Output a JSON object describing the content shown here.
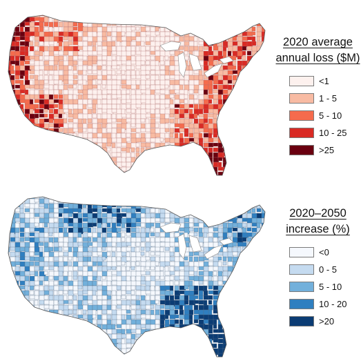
{
  "figure": {
    "top": {
      "legend_title_line1": "2020 average",
      "legend_title_line2": "annual loss ($M)",
      "border_color": "#b07070",
      "base_color": "#fdf3ef",
      "classes": [
        {
          "label": "<1",
          "color": "#fdf1ee"
        },
        {
          "label": "1 - 5",
          "color": "#f8bba3"
        },
        {
          "label": "5 - 10",
          "color": "#f56b4d"
        },
        {
          "label": "10 - 25",
          "color": "#d92a24"
        },
        {
          "label": ">25",
          "color": "#6a0010"
        }
      ]
    },
    "bottom": {
      "legend_title_line1": "2020–2050",
      "legend_title_line2": "increase (%)",
      "border_color": "#5a6f86",
      "base_color": "#f5f8fd",
      "classes": [
        {
          "label": "<0",
          "color": "#f5f8fd"
        },
        {
          "label": "0 - 5",
          "color": "#c5dbf0"
        },
        {
          "label": "5 - 10",
          "color": "#72b0db"
        },
        {
          "label": "10 - 20",
          "color": "#2f7fc0"
        },
        {
          "label": ">20",
          "color": "#0b3c74"
        }
      ]
    }
  }
}
